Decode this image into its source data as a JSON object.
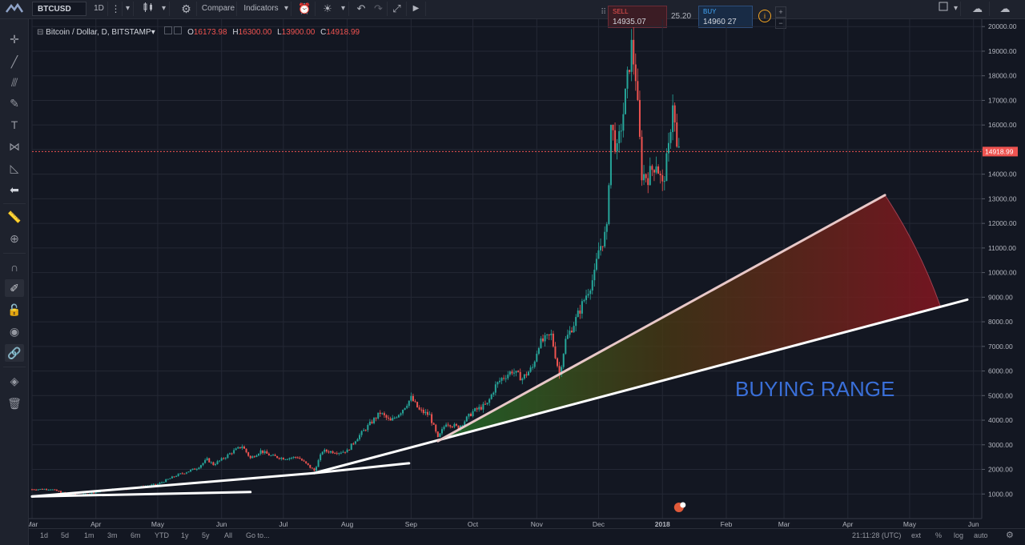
{
  "toolbar": {
    "symbol": "BTCUSD",
    "interval": "1D",
    "compare_label": "Compare",
    "indicators_label": "Indicators"
  },
  "trade": {
    "sell_label": "SELL",
    "sell_price": "14935.07",
    "spread": "25.20",
    "buy_label": "BUY",
    "buy_price": "14960.27"
  },
  "legend": {
    "title": "Bitcoin / Dollar, D, BITSTAMP",
    "open_label": "O",
    "open": "16173.98",
    "high_label": "H",
    "high": "16300.00",
    "low_label": "L",
    "low": "13900.00",
    "close_label": "C",
    "close": "14918.99"
  },
  "bottom": {
    "ranges": [
      "1d",
      "5d",
      "1m",
      "3m",
      "6m",
      "YTD",
      "1y",
      "5y",
      "All"
    ],
    "goto_label": "Go to...",
    "clock": "21:11:28 (UTC)",
    "ext": "ext",
    "pct": "%",
    "log": "log",
    "auto": "auto"
  },
  "annotation": {
    "text": "BUYING RANGE"
  },
  "colors": {
    "background": "#131722",
    "up": "#26a69a",
    "down": "#ef5350",
    "last_price": "#ef5350",
    "annotation": "#3a6fd8",
    "trendline": "#ffffff"
  },
  "chart_data": {
    "type": "candlestick",
    "title": "Bitcoin / Dollar, D, BITSTAMP",
    "ylim": [
      0,
      20300
    ],
    "yticks": [
      1000,
      2000,
      3000,
      4000,
      5000,
      6000,
      7000,
      8000,
      9000,
      10000,
      11000,
      12000,
      13000,
      14000,
      15000,
      16000,
      17000,
      18000,
      19000,
      20000
    ],
    "ytick_labels": [
      "1000.00",
      "2000.00",
      "3000.00",
      "4000.00",
      "5000.00",
      "6000.00",
      "7000.00",
      "8000.00",
      "9000.00",
      "10000.00",
      "11000.00",
      "12000.00",
      "13000.00",
      "14000.00",
      "15000.00",
      "16000.00",
      "17000.00",
      "18000.00",
      "19000.00",
      "20000.00"
    ],
    "xticks": [
      {
        "label": "Mar",
        "date": "2017-03-01"
      },
      {
        "label": "Apr",
        "date": "2017-04-01"
      },
      {
        "label": "May",
        "date": "2017-05-01"
      },
      {
        "label": "Jun",
        "date": "2017-06-01"
      },
      {
        "label": "Jul",
        "date": "2017-07-01"
      },
      {
        "label": "Aug",
        "date": "2017-08-01"
      },
      {
        "label": "Sep",
        "date": "2017-09-01"
      },
      {
        "label": "Oct",
        "date": "2017-10-01"
      },
      {
        "label": "Nov",
        "date": "2017-11-01"
      },
      {
        "label": "Dec",
        "date": "2017-12-01"
      },
      {
        "label": "2018",
        "date": "2018-01-01"
      },
      {
        "label": "Feb",
        "date": "2018-02-01"
      },
      {
        "label": "Mar",
        "date": "2018-03-01"
      },
      {
        "label": "Apr",
        "date": "2018-04-01"
      },
      {
        "label": "May",
        "date": "2018-05-01"
      },
      {
        "label": "Jun",
        "date": "2018-06-01"
      }
    ],
    "x_range": [
      "2017-03-01",
      "2018-06-05"
    ],
    "last_price": 14918.99,
    "last_price_label": "14918.99",
    "close_series": [
      [
        "2017-03-01",
        1190
      ],
      [
        "2017-03-10",
        1200
      ],
      [
        "2017-03-18",
        1000
      ],
      [
        "2017-03-25",
        960
      ],
      [
        "2017-04-01",
        1080
      ],
      [
        "2017-04-10",
        1190
      ],
      [
        "2017-04-20",
        1250
      ],
      [
        "2017-05-01",
        1400
      ],
      [
        "2017-05-10",
        1750
      ],
      [
        "2017-05-20",
        2050
      ],
      [
        "2017-05-25",
        2400
      ],
      [
        "2017-05-28",
        2200
      ],
      [
        "2017-06-01",
        2400
      ],
      [
        "2017-06-06",
        2700
      ],
      [
        "2017-06-11",
        2950
      ],
      [
        "2017-06-15",
        2450
      ],
      [
        "2017-06-20",
        2750
      ],
      [
        "2017-06-25",
        2550
      ],
      [
        "2017-07-01",
        2450
      ],
      [
        "2017-07-08",
        2500
      ],
      [
        "2017-07-16",
        1950
      ],
      [
        "2017-07-20",
        2750
      ],
      [
        "2017-07-28",
        2700
      ],
      [
        "2017-08-01",
        2750
      ],
      [
        "2017-08-05",
        3200
      ],
      [
        "2017-08-12",
        3850
      ],
      [
        "2017-08-17",
        4300
      ],
      [
        "2017-08-22",
        3950
      ],
      [
        "2017-08-27",
        4350
      ],
      [
        "2017-09-01",
        4900
      ],
      [
        "2017-09-05",
        4400
      ],
      [
        "2017-09-10",
        4200
      ],
      [
        "2017-09-14",
        3250
      ],
      [
        "2017-09-18",
        3900
      ],
      [
        "2017-09-24",
        3700
      ],
      [
        "2017-10-01",
        4350
      ],
      [
        "2017-10-08",
        4650
      ],
      [
        "2017-10-12",
        5400
      ],
      [
        "2017-10-15",
        5700
      ],
      [
        "2017-10-20",
        6000
      ],
      [
        "2017-10-25",
        5700
      ],
      [
        "2017-10-30",
        6150
      ],
      [
        "2017-11-02",
        7100
      ],
      [
        "2017-11-08",
        7450
      ],
      [
        "2017-11-12",
        5850
      ],
      [
        "2017-11-15",
        7250
      ],
      [
        "2017-11-20",
        8100
      ],
      [
        "2017-11-26",
        9300
      ],
      [
        "2017-11-29",
        9900
      ],
      [
        "2017-12-01",
        10900
      ],
      [
        "2017-12-05",
        11700
      ],
      [
        "2017-12-07",
        16000
      ],
      [
        "2017-12-10",
        14900
      ],
      [
        "2017-12-13",
        16500
      ],
      [
        "2017-12-17",
        19200
      ],
      [
        "2017-12-19",
        18000
      ],
      [
        "2017-12-22",
        14000
      ],
      [
        "2017-12-25",
        13900
      ],
      [
        "2017-12-29",
        14500
      ],
      [
        "2018-01-01",
        13500
      ],
      [
        "2018-01-04",
        15000
      ],
      [
        "2018-01-06",
        17000
      ],
      [
        "2018-01-08",
        15000
      ],
      [
        "2018-01-09",
        14918.99
      ]
    ],
    "trendlines": [
      {
        "points": [
          [
            "2017-03-01",
            900
          ],
          [
            "2017-06-15",
            1080
          ]
        ]
      },
      {
        "points": [
          [
            "2017-03-01",
            900
          ],
          [
            "2017-07-16",
            1850
          ]
        ]
      },
      {
        "points": [
          [
            "2017-07-16",
            1850
          ],
          [
            "2017-08-31",
            2250
          ]
        ]
      },
      {
        "points": [
          [
            "2017-07-16",
            1850
          ],
          [
            "2018-05-29",
            8900
          ]
        ]
      },
      {
        "points": [
          [
            "2017-09-14",
            3150
          ],
          [
            "2017-11-12",
            5850
          ],
          [
            "2018-04-19",
            13150
          ]
        ]
      }
    ],
    "shaded_range": {
      "label": "BUYING RANGE"
    }
  }
}
